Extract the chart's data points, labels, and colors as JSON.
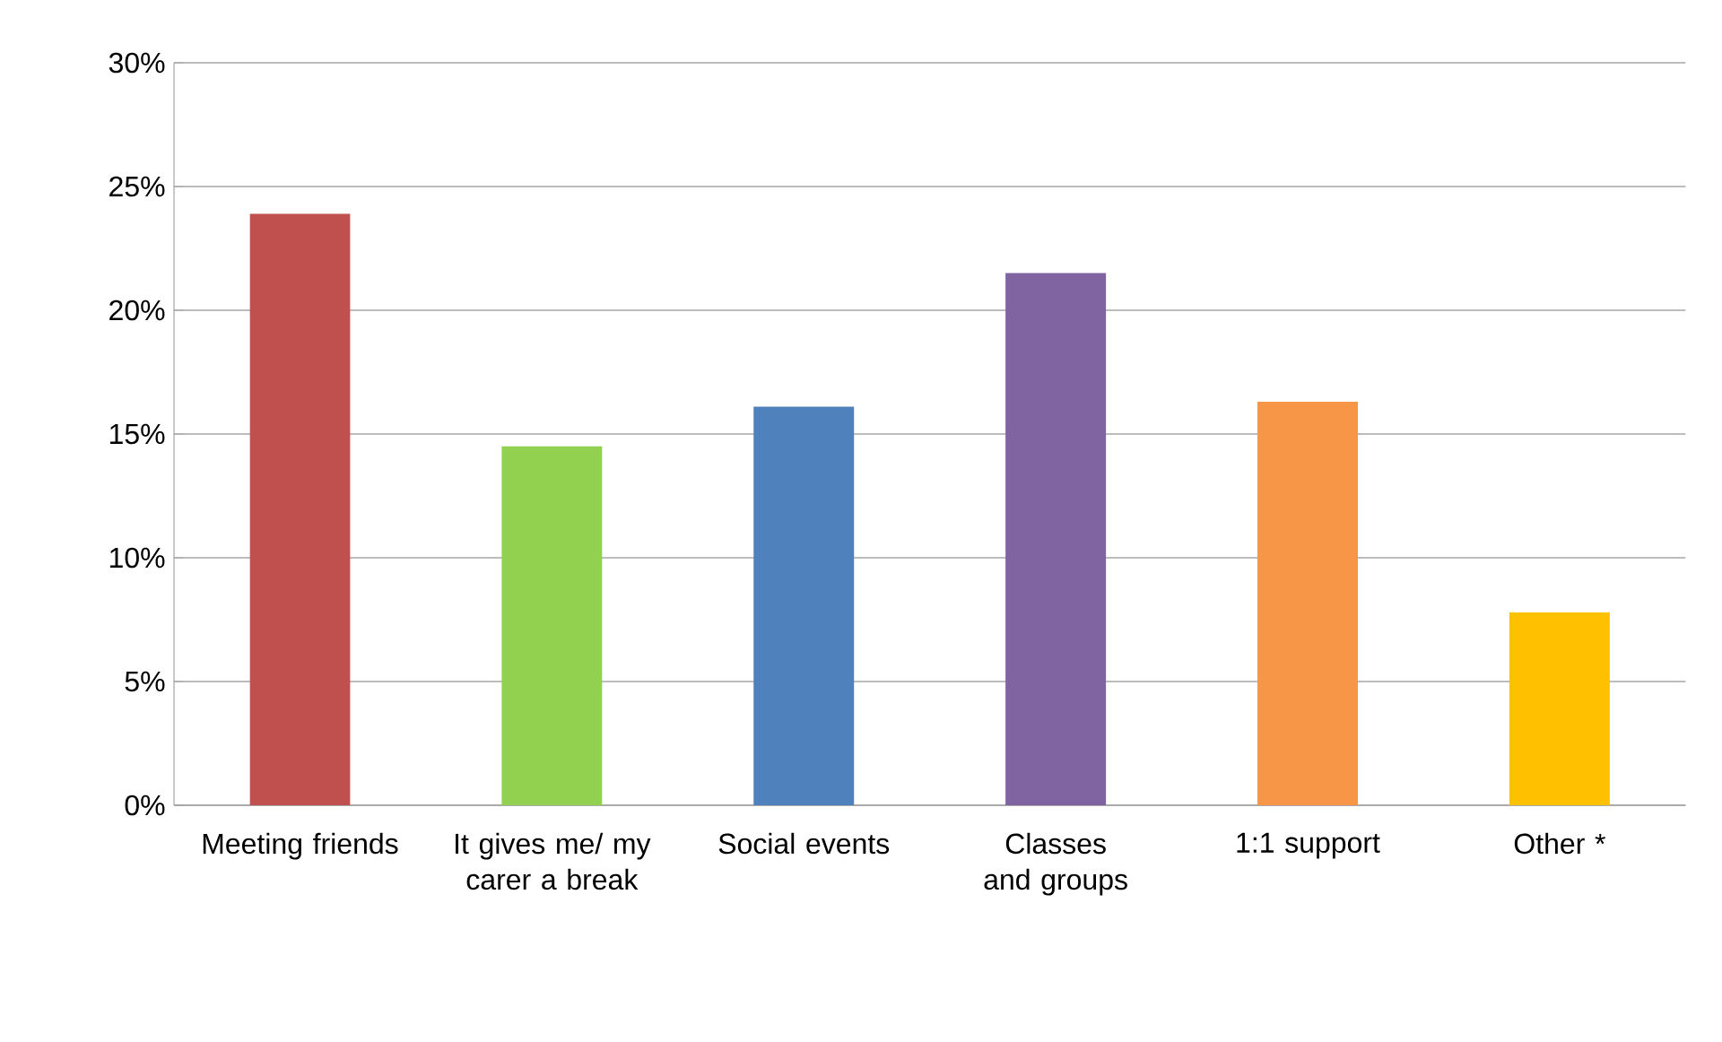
{
  "chart_data": {
    "type": "bar",
    "categories": [
      "Meeting friends",
      "It gives me/ my carer a break",
      "Social events",
      "Classes and groups",
      "1:1 support",
      "Other *"
    ],
    "values": [
      23.9,
      14.5,
      16.1,
      21.5,
      16.3,
      7.8
    ],
    "colors": [
      "#c0504d",
      "#92d050",
      "#4f81bd",
      "#8064a2",
      "#f79646",
      "#ffc000"
    ],
    "ylim": [
      0,
      30
    ],
    "yticks": [
      {
        "value": 0,
        "label": "0%"
      },
      {
        "value": 5,
        "label": "5%"
      },
      {
        "value": 10,
        "label": "10%"
      },
      {
        "value": 15,
        "label": "15%"
      },
      {
        "value": 20,
        "label": "20%"
      },
      {
        "value": 25,
        "label": "25%"
      },
      {
        "value": 30,
        "label": "30%"
      }
    ],
    "grid": "y"
  }
}
